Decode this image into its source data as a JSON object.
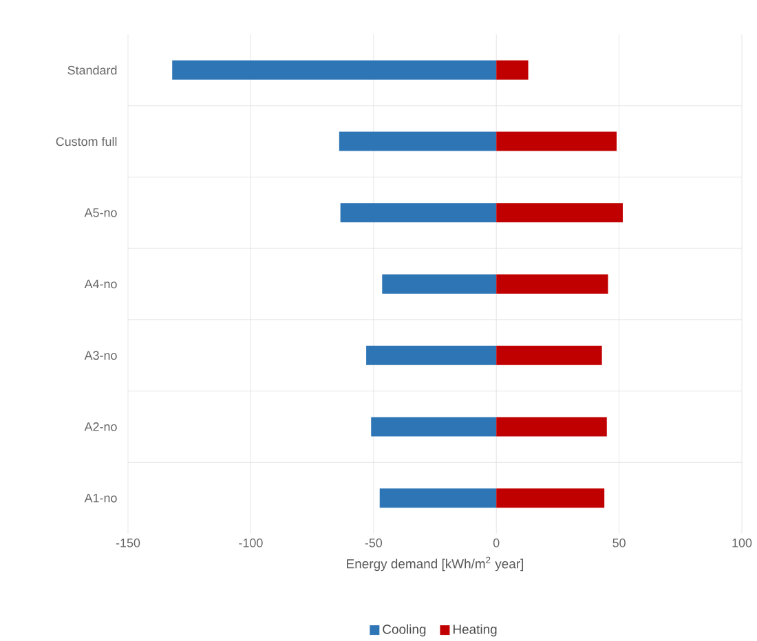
{
  "chart_data": {
    "type": "bar",
    "orientation": "horizontal",
    "categories": [
      "Standard",
      "Custom full",
      "A5-no",
      "A4-no",
      "A3-no",
      "A2-no",
      "A1-no"
    ],
    "series": [
      {
        "name": "Cooling",
        "color": "#2e75b6",
        "values": [
          -132,
          -64,
          -63.5,
          -46.5,
          -53,
          -51,
          -47.5
        ]
      },
      {
        "name": "Heating",
        "color": "#c00000",
        "values": [
          13,
          49,
          51.5,
          45.5,
          43,
          45,
          44
        ]
      }
    ],
    "xlabel": "Energy demand [kWh/m$^{2}$ year]",
    "xlim": [
      -150,
      100
    ],
    "xticks": [
      -150,
      -100,
      -50,
      0,
      50,
      100
    ],
    "grid": true,
    "legend": "bottom",
    "stacked": true
  }
}
